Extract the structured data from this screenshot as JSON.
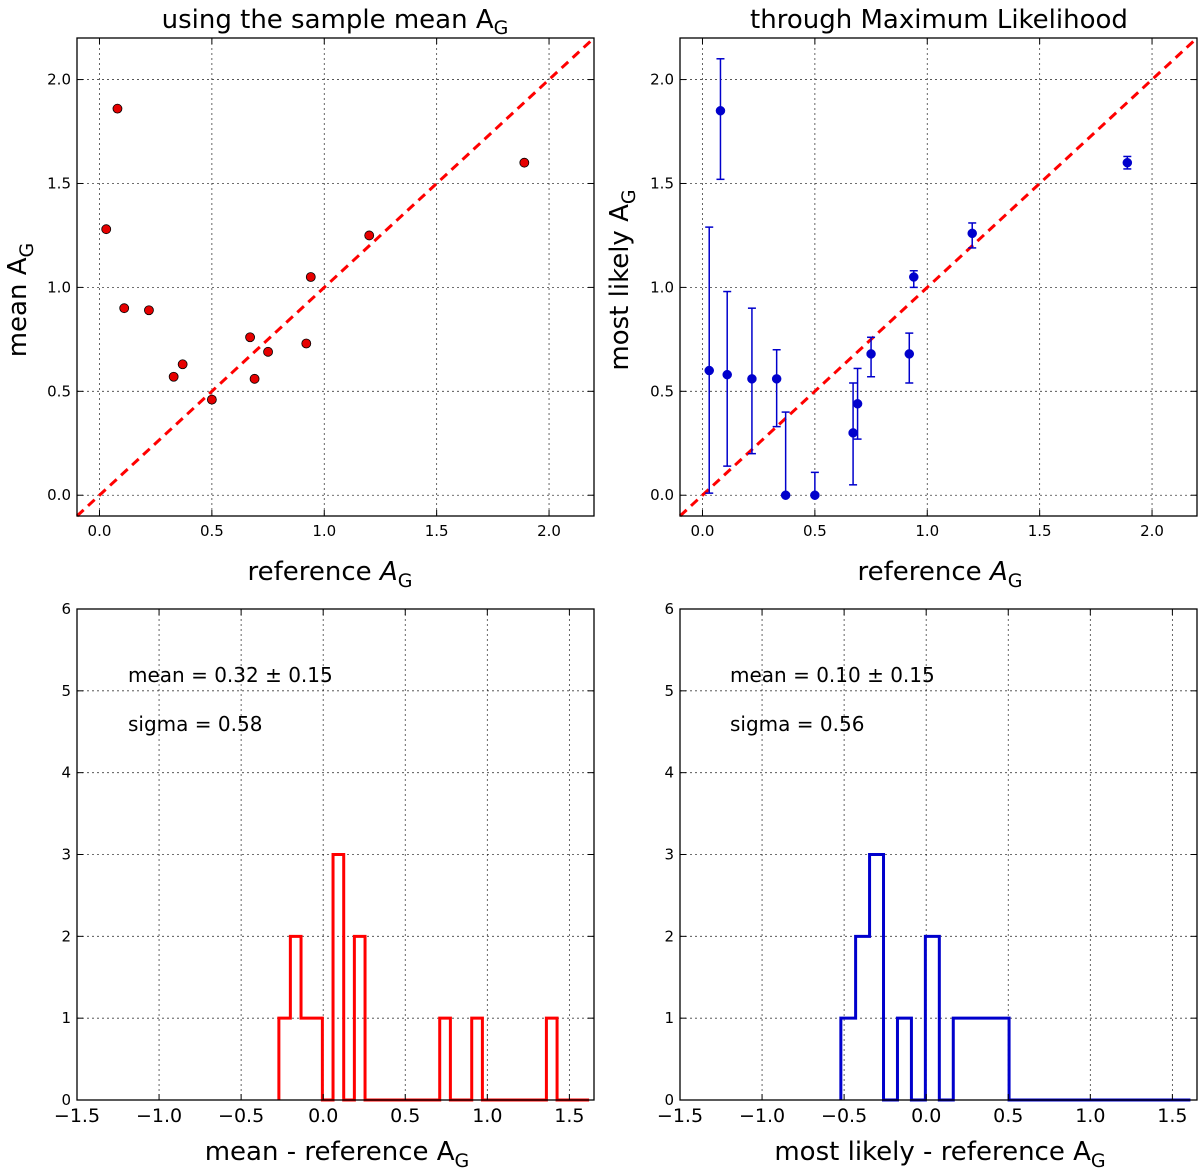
{
  "colors": {
    "red": "#ff0000",
    "point_red": "#e60000",
    "blue": "#0000cc",
    "black": "#000000"
  },
  "chart_data": [
    {
      "id": "scatter-mean",
      "type": "scatter",
      "title": "using the sample mean A",
      "title_sub": "G",
      "xlabel": "reference ",
      "xlabel_italic": "A",
      "xlabel_sub": "G",
      "ylabel": "mean A",
      "ylabel_sub": "G",
      "xlim": [
        -0.1,
        2.2
      ],
      "ylim": [
        -0.1,
        2.2
      ],
      "xticks": [
        0.0,
        0.5,
        1.0,
        1.5,
        2.0
      ],
      "yticks": [
        0.0,
        0.5,
        1.0,
        1.5,
        2.0
      ],
      "xtick_labels": [
        "0.0",
        "0.5",
        "1.0",
        "1.5",
        "2.0"
      ],
      "ytick_labels": [
        "0.0",
        "0.5",
        "1.0",
        "1.5",
        "2.0"
      ],
      "grid": true,
      "reference_line": {
        "x": [
          -0.1,
          2.2
        ],
        "y": [
          -0.1,
          2.2
        ],
        "style": "dashed",
        "color": "#ff0000"
      },
      "points": {
        "x": [
          0.03,
          0.08,
          0.11,
          0.22,
          0.33,
          0.37,
          0.5,
          0.67,
          0.69,
          0.75,
          0.92,
          0.94,
          1.2,
          1.89
        ],
        "y": [
          1.28,
          1.86,
          0.9,
          0.89,
          0.57,
          0.63,
          0.46,
          0.76,
          0.56,
          0.69,
          0.73,
          1.05,
          1.25,
          1.6
        ]
      }
    },
    {
      "id": "scatter-ml",
      "type": "scatter",
      "title": "through Maximum Likelihood",
      "xlabel": "reference ",
      "xlabel_italic": "A",
      "xlabel_sub": "G",
      "ylabel": "most likely A",
      "ylabel_sub": "G",
      "xlim": [
        -0.1,
        2.2
      ],
      "ylim": [
        -0.1,
        2.2
      ],
      "xticks": [
        0.0,
        0.5,
        1.0,
        1.5,
        2.0
      ],
      "yticks": [
        0.0,
        0.5,
        1.0,
        1.5,
        2.0
      ],
      "xtick_labels": [
        "0.0",
        "0.5",
        "1.0",
        "1.5",
        "2.0"
      ],
      "ytick_labels": [
        "0.0",
        "0.5",
        "1.0",
        "1.5",
        "2.0"
      ],
      "grid": true,
      "reference_line": {
        "x": [
          -0.1,
          2.2
        ],
        "y": [
          -0.1,
          2.2
        ],
        "style": "dashed",
        "color": "#ff0000"
      },
      "points": {
        "x": [
          0.03,
          0.08,
          0.11,
          0.22,
          0.33,
          0.37,
          0.5,
          0.67,
          0.69,
          0.75,
          0.92,
          0.94,
          1.2,
          1.89
        ],
        "y": [
          0.6,
          1.85,
          0.58,
          0.56,
          0.56,
          0.0,
          0.0,
          0.3,
          0.44,
          0.68,
          0.68,
          1.05,
          1.26,
          1.6
        ],
        "yerr_low": [
          0.01,
          1.52,
          0.14,
          0.2,
          0.33,
          0.0,
          0.0,
          0.05,
          0.27,
          0.57,
          0.54,
          1.0,
          1.19,
          1.57
        ],
        "yerr_high": [
          1.29,
          2.1,
          0.98,
          0.9,
          0.7,
          0.4,
          0.11,
          0.54,
          0.61,
          0.76,
          0.78,
          1.08,
          1.31,
          1.63
        ]
      }
    },
    {
      "id": "hist-mean",
      "type": "histogram",
      "xlabel": "mean - reference A",
      "xlabel_sub": "G",
      "xlim": [
        -1.5,
        1.65
      ],
      "ylim": [
        0,
        6
      ],
      "xticks": [
        -1.5,
        -1.0,
        -0.5,
        0.0,
        0.5,
        1.0,
        1.5
      ],
      "xtick_labels": [
        "−1.5",
        "−1.0",
        "−0.5",
        "0.0",
        "0.5",
        "1.0",
        "1.5"
      ],
      "yticks": [
        0,
        1,
        2,
        3,
        4,
        5,
        6
      ],
      "ytick_labels": [
        "0",
        "1",
        "2",
        "3",
        "4",
        "5",
        "6"
      ],
      "grid": true,
      "bin_edges": [
        -0.27,
        -0.2,
        -0.135,
        -0.07,
        -0.005,
        0.06,
        0.125,
        0.19,
        0.255,
        0.32,
        0.385,
        0.45,
        0.515,
        0.58,
        0.645,
        0.71,
        0.775,
        0.84,
        0.905,
        0.97,
        1.035,
        1.1,
        1.165,
        1.23,
        1.295,
        1.36,
        1.425,
        1.49,
        1.555,
        1.62
      ],
      "counts": [
        1,
        2,
        1,
        1,
        0,
        3,
        0,
        2,
        0,
        0,
        0,
        0,
        0,
        0,
        0,
        1,
        0,
        0,
        1,
        0,
        0,
        0,
        0,
        0,
        0,
        1,
        0,
        0,
        0
      ],
      "color": "#ff0000",
      "annotations": [
        "mean = 0.32 ± 0.15",
        "sigma = 0.58"
      ]
    },
    {
      "id": "hist-ml",
      "type": "histogram",
      "xlabel": "most likely - reference A",
      "xlabel_sub": "G",
      "xlim": [
        -1.5,
        1.65
      ],
      "ylim": [
        0,
        6
      ],
      "xticks": [
        -1.5,
        -1.0,
        -0.5,
        0.0,
        0.5,
        1.0,
        1.5
      ],
      "xtick_labels": [
        "−1.5",
        "−1.0",
        "−0.5",
        "0.0",
        "0.5",
        "1.0",
        "1.5"
      ],
      "yticks": [
        0,
        1,
        2,
        3,
        4,
        5,
        6
      ],
      "ytick_labels": [
        "0",
        "1",
        "2",
        "3",
        "4",
        "5",
        "6"
      ],
      "grid": true,
      "bin_edges": [
        -0.52,
        -0.43,
        -0.345,
        -0.26,
        -0.175,
        -0.09,
        -0.005,
        0.08,
        0.165,
        0.25,
        0.335,
        0.42,
        0.505,
        0.59,
        0.675,
        0.76,
        0.845,
        0.93,
        1.015,
        1.1,
        1.185,
        1.27,
        1.355,
        1.44,
        1.525,
        1.61
      ],
      "counts": [
        1,
        2,
        3,
        0,
        1,
        0,
        2,
        0,
        1,
        1,
        1,
        1,
        0,
        0,
        0,
        0,
        0,
        0,
        0,
        0,
        0,
        0,
        0,
        0,
        0
      ],
      "color": "#0000cc",
      "annotations": [
        "mean = 0.10 ± 0.15",
        "sigma = 0.56"
      ]
    }
  ]
}
